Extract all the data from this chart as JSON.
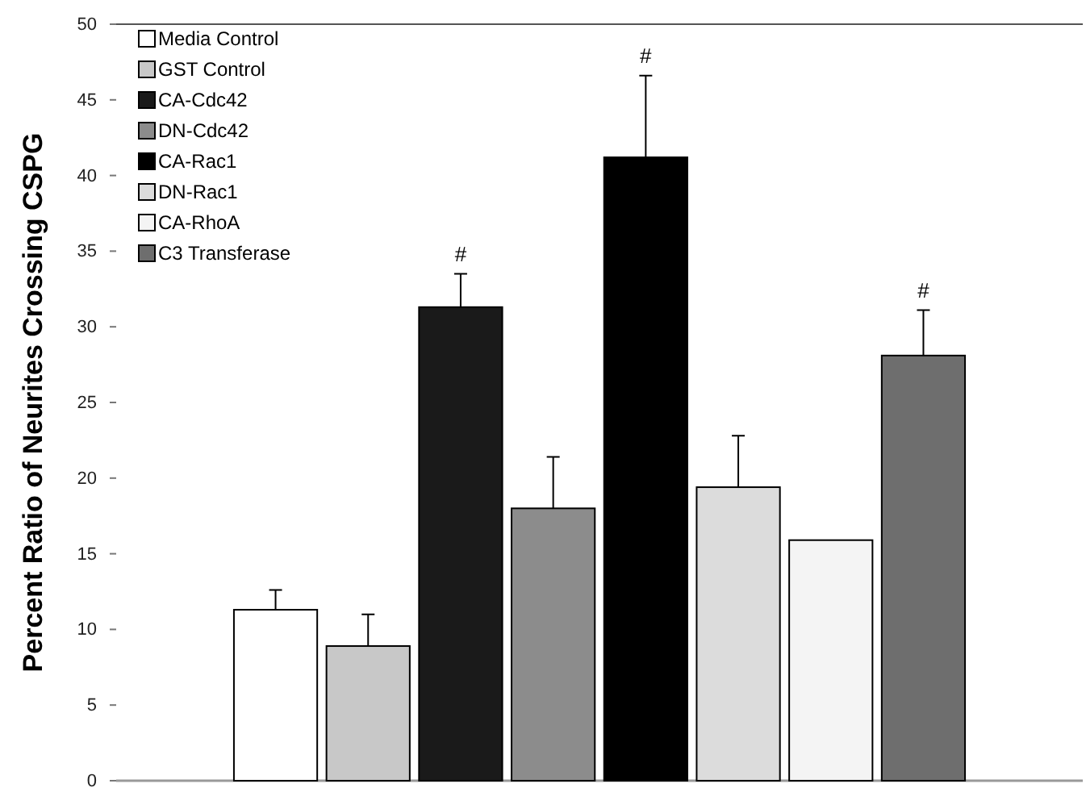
{
  "chart_data": {
    "type": "bar",
    "ylabel": "Percent Ratio of Neurites Crossing CSPG",
    "categories": [
      null
    ],
    "ylim": [
      0,
      50
    ],
    "yticks": [
      0,
      5,
      10,
      15,
      20,
      25,
      30,
      35,
      40,
      45,
      50
    ],
    "grid": false,
    "legend": "top left",
    "series": [
      {
        "name": "Media Control",
        "color": "#ffffff",
        "values": [
          11.3
        ],
        "errors": [
          1.3
        ]
      },
      {
        "name": "GST Control",
        "color": "#c8c8c8",
        "values": [
          8.9
        ],
        "errors": [
          2.1
        ]
      },
      {
        "name": "CA-Cdc42",
        "color": "#1a1a1a",
        "values": [
          31.3
        ],
        "errors": [
          2.2
        ]
      },
      {
        "name": "DN-Cdc42",
        "color": "#8c8c8c",
        "values": [
          18.0
        ],
        "errors": [
          3.4
        ]
      },
      {
        "name": "CA-Rac1",
        "color": "#000000",
        "values": [
          41.2
        ],
        "errors": [
          5.4
        ]
      },
      {
        "name": "DN-Rac1",
        "color": "#dcdcdc",
        "values": [
          19.4
        ],
        "errors": [
          3.4
        ]
      },
      {
        "name": "CA-RhoA",
        "color": "#f4f4f4",
        "values": [
          15.9
        ],
        "errors": [
          null
        ]
      },
      {
        "name": "C3 Transferase",
        "color": "#6e6e6e",
        "values": [
          28.1
        ],
        "errors": [
          3.0
        ]
      }
    ],
    "annotations": [
      {
        "text": "#",
        "y": 33.5
      },
      {
        "text": "#",
        "y": 46.6
      },
      {
        "text": "#",
        "y": 31.1
      }
    ]
  }
}
